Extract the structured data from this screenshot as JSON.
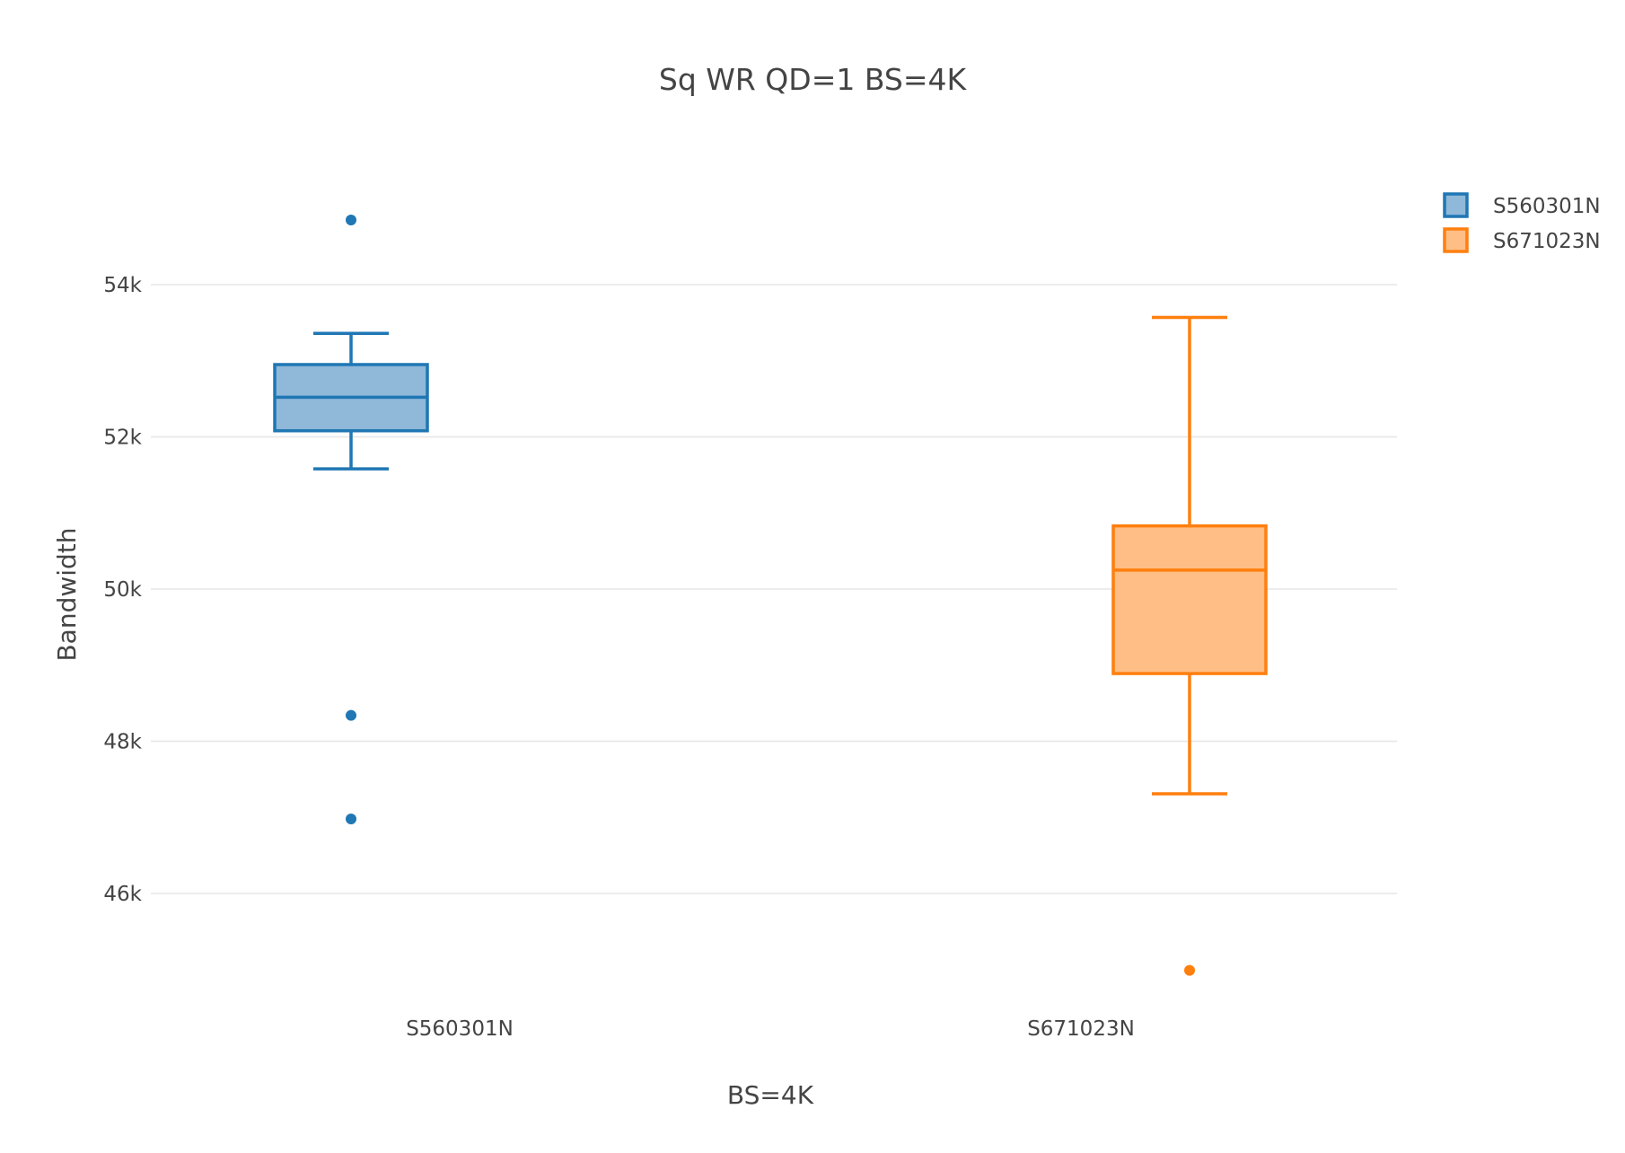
{
  "chart_data": {
    "type": "box",
    "title": "Sq WR QD=1 BS=4K",
    "xlabel": "BS=4K",
    "ylabel": "Bandwidth",
    "categories": [
      "S560301N",
      "S671023N"
    ],
    "ylim": [
      44500,
      56200
    ],
    "yticks": [
      {
        "value": 46000,
        "label": "46k"
      },
      {
        "value": 48000,
        "label": "48k"
      },
      {
        "value": 50000,
        "label": "50k"
      },
      {
        "value": 52000,
        "label": "52k"
      },
      {
        "value": 54000,
        "label": "54k"
      }
    ],
    "grid": true,
    "legend_position": "top-right",
    "series": [
      {
        "name": "S560301N",
        "color": "#1f77b4",
        "fill": "#8fb8d9",
        "whisker_low": 51580,
        "q1": 52080,
        "median": 52520,
        "q3": 52950,
        "whisker_high": 53360,
        "outliers": [
          54850,
          48340,
          46980
        ]
      },
      {
        "name": "S671023N",
        "color": "#ff7f0e",
        "fill": "#ffbe85",
        "whisker_low": 47310,
        "q1": 48890,
        "median": 50250,
        "q3": 50830,
        "whisker_high": 53570,
        "outliers": [
          44990
        ]
      }
    ]
  }
}
